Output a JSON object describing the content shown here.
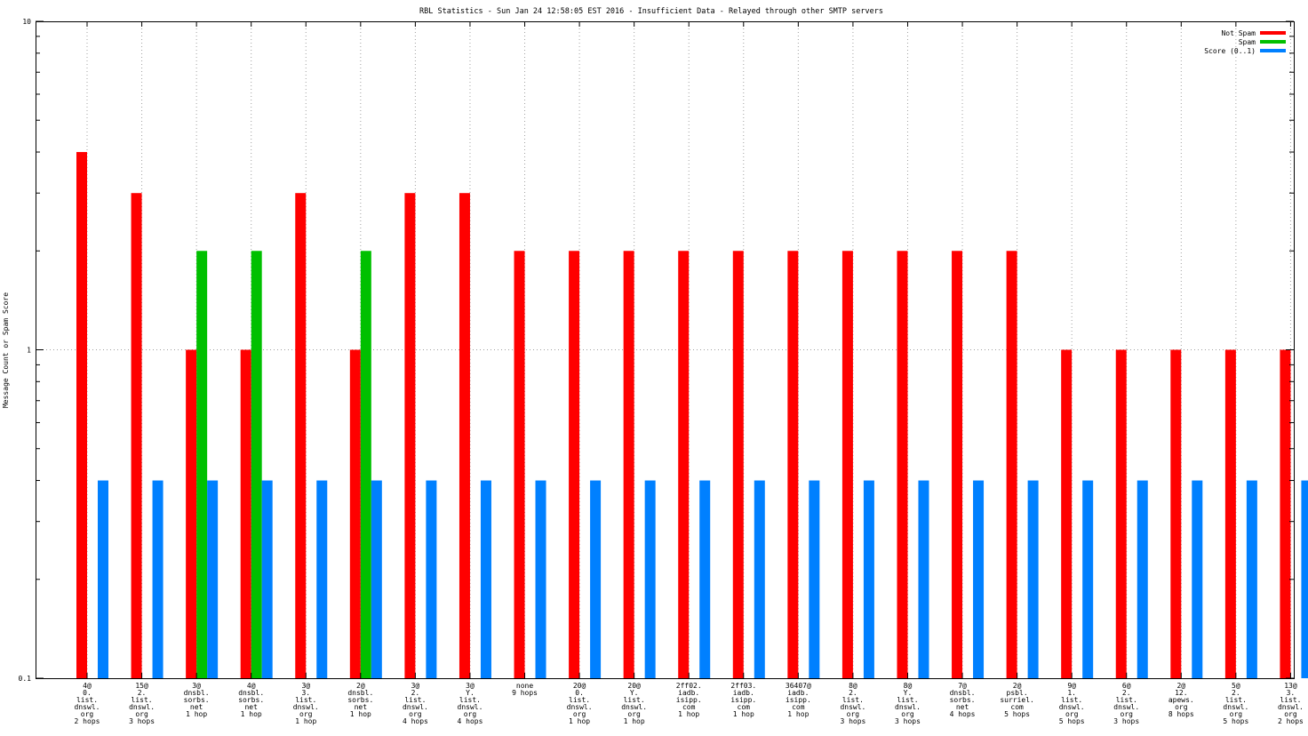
{
  "chart_data": {
    "type": "bar",
    "title": "RBL Statistics - Sun Jan 24 12:58:05 EST 2016 - Insufficient Data - Relayed through other SMTP servers",
    "ylabel": "Message Count or Spam Score",
    "xlabel": "",
    "yscale": "log",
    "ylim": [
      0.1,
      10
    ],
    "y_tick_labels": [
      "10",
      "1",
      "0.1"
    ],
    "grid": "horizontal dotted at decades, vertical dotted at categories",
    "legend_position": "top-right",
    "categories": [
      [
        "4@",
        "0.",
        "list.",
        "dnswl.",
        "org",
        "2 hops"
      ],
      [
        "15@",
        "2.",
        "list.",
        "dnswl.",
        "org",
        "3 hops"
      ],
      [
        "3@",
        "dnsbl.",
        "sorbs.",
        "net",
        "1 hop"
      ],
      [
        "4@",
        "dnsbl.",
        "sorbs.",
        "net",
        "1 hop"
      ],
      [
        "3@",
        "3.",
        "list.",
        "dnswl.",
        "org",
        "1 hop"
      ],
      [
        "2@",
        "dnsbl.",
        "sorbs.",
        "net",
        "1 hop"
      ],
      [
        "3@",
        "2.",
        "list.",
        "dnswl.",
        "org",
        "4 hops"
      ],
      [
        "3@",
        "Y.",
        "list.",
        "dnswl.",
        "org",
        "4 hops"
      ],
      [
        "none",
        "9 hops"
      ],
      [
        "20@",
        "0.",
        "list.",
        "dnswl.",
        "org",
        "1 hop"
      ],
      [
        "20@",
        "Y.",
        "list.",
        "dnswl.",
        "org",
        "1 hop"
      ],
      [
        "2ff02.",
        "iadb.",
        "isipp.",
        "com",
        "1 hop"
      ],
      [
        "2ff03.",
        "iadb.",
        "isipp.",
        "com",
        "1 hop"
      ],
      [
        "36407@",
        "iadb.",
        "isipp.",
        "com",
        "1 hop"
      ],
      [
        "8@",
        "2.",
        "list.",
        "dnswl.",
        "org",
        "3 hops"
      ],
      [
        "8@",
        "Y.",
        "list.",
        "dnswl.",
        "org",
        "3 hops"
      ],
      [
        "7@",
        "dnsbl.",
        "sorbs.",
        "net",
        "4 hops"
      ],
      [
        "2@",
        "psbl.",
        "surriel.",
        "com",
        "5 hops"
      ],
      [
        "9@",
        "1.",
        "list.",
        "dnswl.",
        "org",
        "5 hops"
      ],
      [
        "6@",
        "2.",
        "list.",
        "dnswl.",
        "org",
        "3 hops"
      ],
      [
        "2@",
        "12.",
        "apews.",
        "org",
        "8 hops"
      ],
      [
        "5@",
        "2.",
        "list.",
        "dnswl.",
        "org",
        "5 hops"
      ],
      [
        "13@",
        "3.",
        "list.",
        "dnswl.",
        "org",
        "2 hops"
      ]
    ],
    "series": [
      {
        "name": "Not Spam",
        "color": "#ff0000",
        "values": [
          4,
          3,
          1,
          1,
          3,
          1,
          3,
          3,
          2,
          2,
          2,
          2,
          2,
          2,
          2,
          2,
          2,
          2,
          1,
          1,
          1,
          1,
          1
        ]
      },
      {
        "name": "Spam",
        "color": "#00c000",
        "values": [
          null,
          null,
          2,
          2,
          null,
          2,
          null,
          null,
          null,
          null,
          null,
          null,
          null,
          null,
          null,
          null,
          null,
          null,
          null,
          null,
          null,
          null,
          null
        ]
      },
      {
        "name": "Score (0..1)",
        "color": "#0080ff",
        "values": [
          0.4,
          0.4,
          0.4,
          0.4,
          0.4,
          0.4,
          0.4,
          0.4,
          0.4,
          0.4,
          0.4,
          0.4,
          0.4,
          0.4,
          0.4,
          0.4,
          0.4,
          0.4,
          0.4,
          0.4,
          0.4,
          0.4,
          0.4
        ]
      }
    ]
  }
}
